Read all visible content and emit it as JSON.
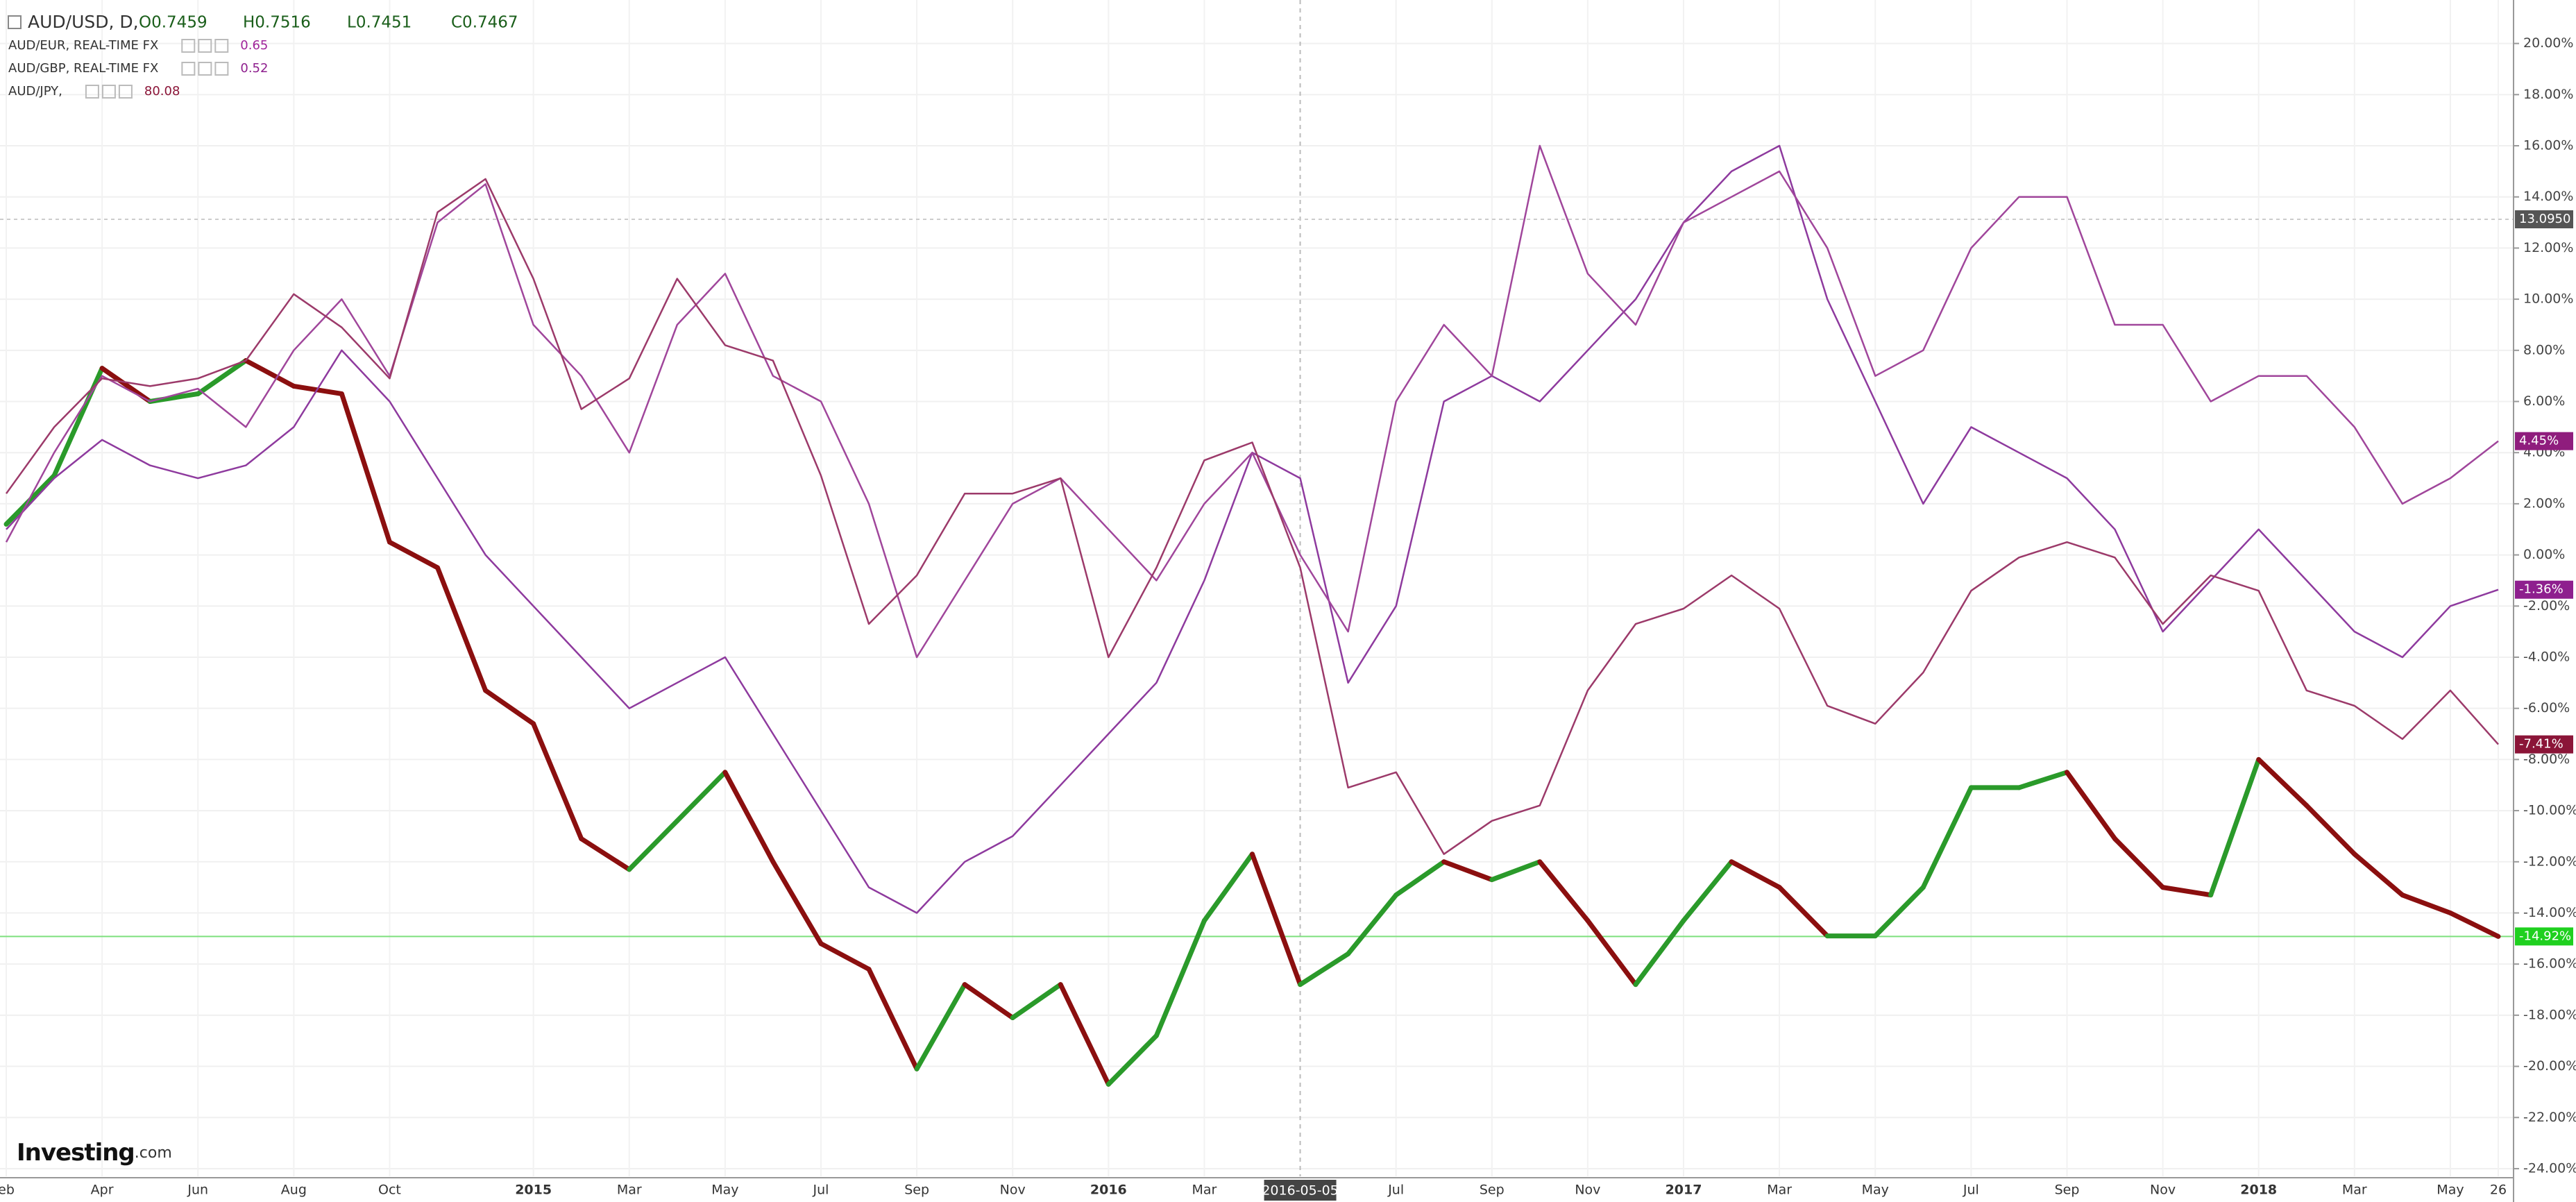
{
  "chart_data": {
    "type": "line",
    "categories": [
      "eb",
      null,
      "Apr",
      null,
      "Jun",
      null,
      "Aug",
      null,
      "Oct",
      null,
      null,
      "2015",
      null,
      "Mar",
      null,
      "May",
      null,
      "Jul",
      null,
      "Sep",
      null,
      "Nov",
      null,
      "2016",
      null,
      "Mar",
      null,
      "2016-05-05",
      null,
      "Jul",
      null,
      "Sep",
      null,
      "Nov",
      null,
      "2017",
      null,
      "Mar",
      null,
      "May",
      null,
      "Jul",
      null,
      "Sep",
      null,
      "Nov",
      null,
      "2018",
      null,
      "Mar",
      null,
      "May",
      "26"
    ],
    "crosshair": "2016-05-05",
    "ohlc": [
      "O0.7459",
      "H0.7516",
      "L0.7451",
      "C0.7467"
    ],
    "price_line": "13.0950",
    "logo": {
      "brand": "Investing",
      "suffix": ".com"
    },
    "ylim": [
      -24.3,
      21.7
    ],
    "yticks": [
      {
        "value": 20,
        "label": "20.00%"
      },
      {
        "value": 18,
        "label": "18.00%"
      },
      {
        "value": 16,
        "label": "16.00%"
      },
      {
        "value": 14,
        "label": "14.00%"
      },
      {
        "value": 12,
        "label": "12.00%"
      },
      {
        "value": 10,
        "label": "10.00%"
      },
      {
        "value": 8,
        "label": "8.00%"
      },
      {
        "value": 6,
        "label": "6.00%"
      },
      {
        "value": 4,
        "label": "4.00%"
      },
      {
        "value": 2,
        "label": "2.00%"
      },
      {
        "value": 0,
        "label": "0.00%"
      },
      {
        "value": -2,
        "label": "-2.00%"
      },
      {
        "value": -4,
        "label": "-4.00%"
      },
      {
        "value": -6,
        "label": "-6.00%"
      },
      {
        "value": -8,
        "label": "-8.00%"
      },
      {
        "value": -10,
        "label": "-10.00%"
      },
      {
        "value": -12,
        "label": "-12.00%"
      },
      {
        "value": -14,
        "label": "-14.00%"
      },
      {
        "value": -16,
        "label": "-16.00%"
      },
      {
        "value": -18,
        "label": "-18.00%"
      },
      {
        "value": -20,
        "label": "-20.00%"
      },
      {
        "value": -22,
        "label": "-22.00%"
      },
      {
        "value": -24,
        "label": "-24.00%"
      }
    ],
    "grid": true,
    "series": [
      {
        "name": "AUD/USD, D,",
        "color": "#2a9a2a",
        "down_color": "#8b0f0f",
        "label_color": "#1fd01f",
        "values": [
          1.2,
          3.1,
          7.3,
          6.0,
          6.3,
          7.6,
          6.6,
          6.3,
          0.5,
          -0.5,
          -5.3,
          -6.6,
          -11.1,
          -12.3,
          -10.4,
          -8.5,
          -12.0,
          -15.2,
          -16.2,
          -20.1,
          -16.8,
          -18.1,
          -16.8,
          -20.7,
          -18.8,
          -14.3,
          -11.7,
          -16.8,
          -15.6,
          -13.3,
          -12.0,
          -12.7,
          -12.0,
          -14.3,
          -16.8,
          -14.3,
          -12.0,
          -13.0,
          -14.9,
          -14.9,
          -13.0,
          -9.1,
          -9.1,
          -8.5,
          -11.1,
          -13.0,
          -13.3,
          -8.0,
          -9.8,
          -11.7,
          -13.3,
          -14.0,
          -14.92
        ],
        "value_labels": [
          null,
          null,
          null,
          null,
          null,
          null,
          null,
          null,
          null,
          null,
          null,
          null,
          null,
          null,
          null,
          null,
          null,
          null,
          null,
          null,
          null,
          null,
          null,
          null,
          null,
          null,
          null,
          null,
          null,
          null,
          null,
          null,
          null,
          null,
          null,
          null,
          null,
          null,
          null,
          null,
          null,
          null,
          null,
          null,
          null,
          null,
          null,
          null,
          null,
          null,
          null,
          null,
          "-14.92%"
        ]
      },
      {
        "name": "AUD/EUR, REAL-TIME FX",
        "legend_value": "0.65",
        "legend_value_color": "#a0239a",
        "color": "#8e3a9e",
        "label_color": "#8e1f8e",
        "values": [
          1,
          3,
          4.5,
          3.5,
          3,
          3.5,
          5,
          8,
          6,
          3,
          0,
          -2,
          -4,
          -6,
          -5,
          -4,
          -7,
          -10,
          -13,
          -14,
          -12,
          -11,
          -9,
          -7,
          -5,
          -1,
          4,
          3,
          -5,
          -2,
          6,
          7,
          6,
          8,
          10,
          13,
          15,
          16,
          10,
          6,
          2,
          5,
          4,
          3,
          1,
          -3,
          -1,
          1,
          -1,
          -3,
          -4,
          -2,
          -1.36
        ],
        "value_labels": [
          null,
          null,
          null,
          null,
          null,
          null,
          null,
          null,
          null,
          null,
          null,
          null,
          null,
          null,
          null,
          null,
          null,
          null,
          null,
          null,
          null,
          null,
          null,
          null,
          null,
          null,
          null,
          null,
          null,
          null,
          null,
          null,
          null,
          null,
          null,
          null,
          null,
          null,
          null,
          null,
          null,
          null,
          null,
          null,
          null,
          null,
          null,
          null,
          null,
          null,
          null,
          null,
          "-1.36%"
        ]
      },
      {
        "name": "AUD/GBP, REAL-TIME FX",
        "legend_value": "0.52",
        "legend_value_color": "#8e1f8e",
        "color": "#a0469b",
        "label_color": "#8f1d7d",
        "values": [
          0.5,
          4,
          7,
          6,
          6.5,
          5,
          8,
          10,
          7,
          13,
          14.5,
          9,
          7,
          4,
          9,
          11,
          7,
          6,
          2,
          -4,
          -1,
          2,
          3,
          1,
          -1,
          2,
          4,
          0,
          -3,
          6,
          9,
          7,
          16,
          11,
          9,
          13,
          14,
          15,
          12,
          7,
          8,
          12,
          14,
          14,
          9,
          9,
          6,
          7,
          7,
          5,
          2,
          3,
          4.45
        ],
        "value_labels": [
          null,
          null,
          null,
          null,
          null,
          null,
          null,
          null,
          null,
          null,
          null,
          null,
          null,
          null,
          null,
          null,
          null,
          null,
          null,
          null,
          null,
          null,
          null,
          null,
          null,
          null,
          null,
          null,
          null,
          null,
          null,
          null,
          null,
          null,
          null,
          null,
          null,
          null,
          null,
          null,
          null,
          null,
          null,
          null,
          null,
          null,
          null,
          null,
          null,
          null,
          null,
          null,
          "4.45%"
        ]
      },
      {
        "name": "AUD/JPY,",
        "legend_value": "80.08",
        "legend_value_color": "#8b1538",
        "color": "#9c3a6a",
        "label_color": "#8b1538",
        "values": [
          2.4,
          5.0,
          6.9,
          6.6,
          6.9,
          7.6,
          10.2,
          8.9,
          6.9,
          13.4,
          14.7,
          10.8,
          5.7,
          6.9,
          10.8,
          8.2,
          7.6,
          3.1,
          -2.7,
          -0.8,
          2.4,
          2.4,
          3.0,
          -4.0,
          -0.5,
          3.7,
          4.4,
          -0.5,
          -9.1,
          -8.5,
          -11.7,
          -10.4,
          -9.8,
          -5.3,
          -2.7,
          -2.1,
          -0.8,
          -2.1,
          -5.9,
          -6.6,
          -4.6,
          -1.4,
          -0.1,
          0.5,
          -0.1,
          -2.7,
          -0.8,
          -1.4,
          -5.3,
          -5.9,
          -7.2,
          -5.3,
          -7.41
        ],
        "value_labels": [
          null,
          null,
          null,
          null,
          null,
          null,
          null,
          null,
          null,
          null,
          null,
          null,
          null,
          null,
          null,
          null,
          null,
          null,
          null,
          null,
          null,
          null,
          null,
          null,
          null,
          null,
          null,
          null,
          null,
          null,
          null,
          null,
          null,
          null,
          null,
          null,
          null,
          null,
          null,
          null,
          null,
          null,
          null,
          null,
          null,
          null,
          null,
          null,
          null,
          null,
          null,
          null,
          "-7.41%"
        ]
      }
    ]
  }
}
